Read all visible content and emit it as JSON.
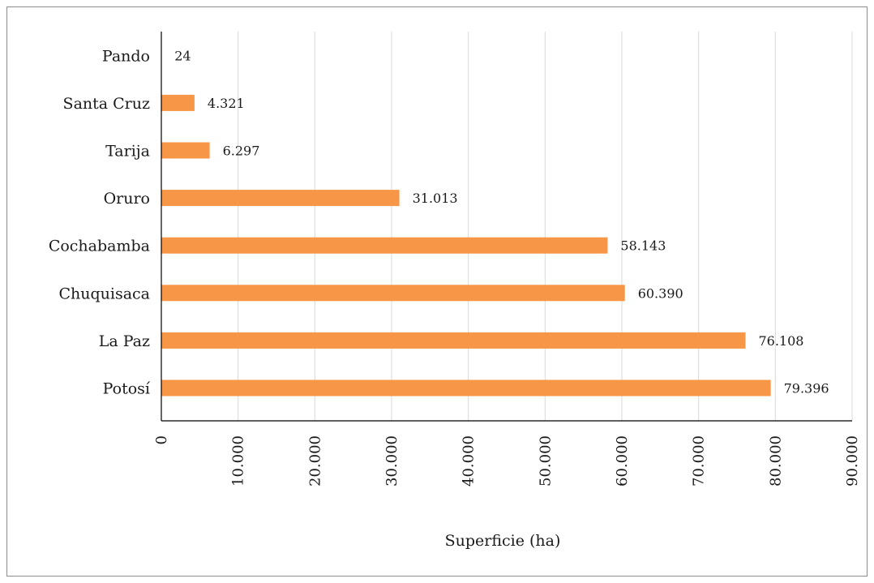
{
  "chart_data": {
    "type": "bar",
    "orientation": "horizontal",
    "categories": [
      "Pando",
      "Santa Cruz",
      "Tarija",
      "Oruro",
      "Cochabamba",
      "Chuquisaca",
      "La Paz",
      "Potosí"
    ],
    "values": [
      24,
      4321,
      6297,
      31013,
      58143,
      60390,
      76108,
      79396
    ],
    "data_labels": [
      "24",
      "4.321",
      "6.297",
      "31.013",
      "58.143",
      "60.390",
      "76.108",
      "79.396"
    ],
    "xticks": [
      0,
      10000,
      20000,
      30000,
      40000,
      50000,
      60000,
      70000,
      80000,
      90000
    ],
    "xtick_labels": [
      "0",
      "10.000",
      "20.000",
      "30.000",
      "40.000",
      "50.000",
      "60.000",
      "70.000",
      "80.000",
      "90.000"
    ],
    "xlim": [
      0,
      90000
    ],
    "title": "",
    "xlabel": "Superficie (ha)",
    "ylabel": "",
    "grid": "vertical",
    "legend": "none",
    "bar_color": "#F79646",
    "grid_color": "#d9d9d9",
    "axis_color": "#000000"
  }
}
